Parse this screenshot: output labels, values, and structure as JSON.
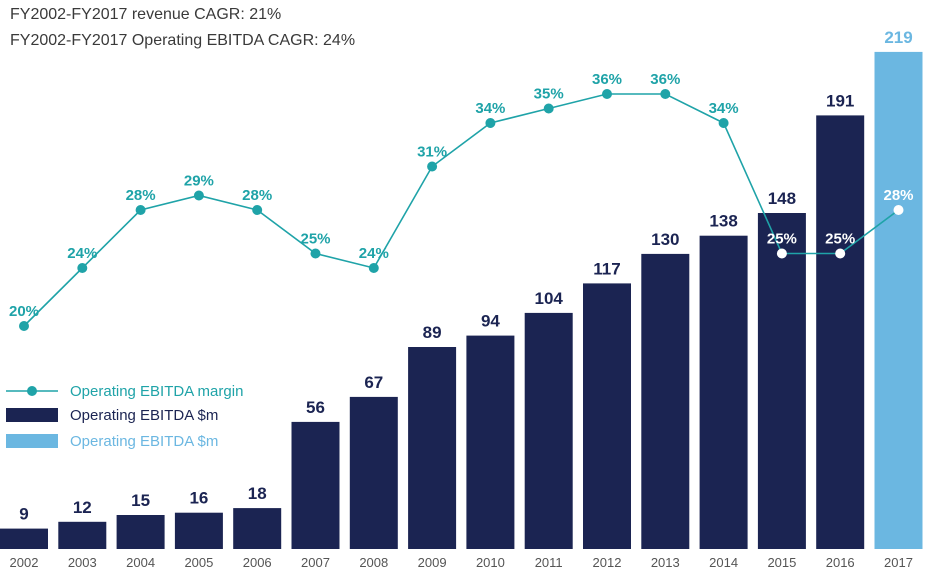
{
  "subtitles": [
    "FY2002-FY2017 revenue CAGR: 21%",
    "FY2002-FY2017 Operating EBITDA CAGR: 24%"
  ],
  "legend": [
    {
      "label": "Operating EBITDA margin",
      "kind": "line",
      "color": "#1fa3a8"
    },
    {
      "label": "Operating EBITDA $m",
      "kind": "bar",
      "color": "#1b2452"
    },
    {
      "label": "Operating EBITDA $m",
      "kind": "bar",
      "color": "#6bb7e1"
    }
  ],
  "colors": {
    "bar_actual": "#1b2452",
    "bar_highlight": "#6bb7e1",
    "margin_line": "#1fa3a8",
    "bar_label": "#1b2452",
    "highlight_label": "#6bb7e1",
    "margin_label": "#1fa3a8",
    "axis_label": "#555555"
  },
  "chart_data": {
    "type": "bar",
    "categories": [
      "2002",
      "2003",
      "2004",
      "2005",
      "2006",
      "2007",
      "2008",
      "2009",
      "2010",
      "2011",
      "2012",
      "2013",
      "2014",
      "2015",
      "2016",
      "2017"
    ],
    "series": [
      {
        "name": "Operating EBITDA $m",
        "type": "bar",
        "values": [
          9,
          12,
          15,
          16,
          18,
          56,
          67,
          89,
          94,
          104,
          117,
          130,
          138,
          148,
          191,
          219
        ],
        "labels": [
          "9",
          "12",
          "15",
          "16",
          "18",
          "56",
          "67",
          "89",
          "94",
          "104",
          "117",
          "130",
          "138",
          "148",
          "191",
          "219"
        ],
        "highlight_index": 15
      },
      {
        "name": "Operating EBITDA margin",
        "type": "line",
        "values": [
          20,
          24,
          28,
          29,
          28,
          25,
          24,
          31,
          34,
          35,
          36,
          36,
          34,
          25,
          25,
          28
        ],
        "labels": [
          "20%",
          "24%",
          "28%",
          "29%",
          "28%",
          "25%",
          "24%",
          "31%",
          "34%",
          "35%",
          "36%",
          "36%",
          "34%",
          "25%",
          "25%",
          "28%"
        ],
        "unit": "%"
      }
    ],
    "title": "",
    "xlabel": "",
    "ylabel": "",
    "grid": false,
    "legend_position": "left"
  }
}
